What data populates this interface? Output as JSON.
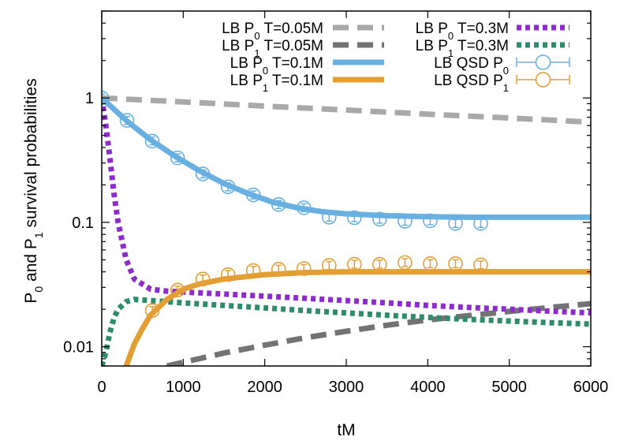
{
  "chart_data": {
    "type": "line",
    "title": "",
    "xlabel": "tM",
    "ylabel": "P0 and P1 survival probabilities",
    "ylabel_parts": {
      "a": "P",
      "sub_a": "0",
      "mid": " and P",
      "sub_b": "1",
      "rest": " survival probabilities"
    },
    "xlim": [
      0,
      6000
    ],
    "ylim": [
      0.007,
      5
    ],
    "yscale": "log",
    "xticks": [
      0,
      1000,
      2000,
      3000,
      4000,
      5000,
      6000
    ],
    "xtick_labels": [
      "0",
      "1000",
      "2000",
      "3000",
      "4000",
      "5000",
      "6000"
    ],
    "yticks": [
      0.01,
      0.1,
      1
    ],
    "ytick_labels": [
      "0.01",
      "0.1",
      "1"
    ],
    "grid": false,
    "legend_position": "top",
    "series": [
      {
        "name": "LB P0 T=0.05M",
        "legend": {
          "a": "LB P",
          "sub": "0",
          "rest": " T=0.05M"
        },
        "style": "dashed",
        "color": "#a9a9a9",
        "x": [
          0,
          1000,
          2000,
          3000,
          4000,
          5000,
          6000
        ],
        "y": [
          1.0,
          0.93,
          0.86,
          0.8,
          0.74,
          0.69,
          0.64
        ]
      },
      {
        "name": "LB P1 T=0.05M",
        "legend": {
          "a": "LB P",
          "sub": "1",
          "rest": " T=0.05M"
        },
        "style": "dashed",
        "color": "#737373",
        "x": [
          800,
          1000,
          1500,
          2000,
          2500,
          3000,
          3500,
          4000,
          4500,
          5000,
          5500,
          6000
        ],
        "y": [
          0.007,
          0.0075,
          0.0089,
          0.0103,
          0.0118,
          0.0133,
          0.0149,
          0.0164,
          0.0178,
          0.0192,
          0.0207,
          0.0222
        ]
      },
      {
        "name": "LB P0 T=0.1M",
        "legend": {
          "a": "LB P",
          "sub": "0",
          "rest": " T=0.1M"
        },
        "style": "solid",
        "color": "#67b0e1",
        "x": [
          0,
          300,
          600,
          900,
          1200,
          1500,
          1800,
          2100,
          2400,
          2700,
          3000,
          3500,
          4000,
          4500,
          5000,
          5500,
          6000
        ],
        "y": [
          1.0,
          0.66,
          0.46,
          0.34,
          0.26,
          0.205,
          0.17,
          0.145,
          0.131,
          0.122,
          0.117,
          0.113,
          0.111,
          0.11,
          0.11,
          0.11,
          0.11
        ]
      },
      {
        "name": "LB P1 T=0.1M",
        "legend": {
          "a": "LB P",
          "sub": "1",
          "rest": " T=0.1M"
        },
        "style": "solid",
        "color": "#e39f34",
        "x": [
          300,
          400,
          500,
          600,
          800,
          1000,
          1200,
          1500,
          2000,
          2500,
          3000,
          4000,
          5000,
          6000
        ],
        "y": [
          0.007,
          0.0105,
          0.014,
          0.018,
          0.024,
          0.029,
          0.032,
          0.035,
          0.038,
          0.0395,
          0.04,
          0.04,
          0.04,
          0.04
        ]
      },
      {
        "name": "LB P0 T=0.3M",
        "legend": {
          "a": "LB P",
          "sub": "0",
          "rest": " T=0.3M"
        },
        "style": "dotted",
        "color": "#8e2bcf",
        "x": [
          0,
          50,
          100,
          150,
          200,
          300,
          400,
          600,
          800,
          1000,
          1500,
          2000,
          2500,
          3000,
          3500,
          4000,
          4500,
          5000,
          5500,
          6000
        ],
        "y": [
          1.0,
          0.6,
          0.33,
          0.17,
          0.1,
          0.05,
          0.035,
          0.029,
          0.028,
          0.0275,
          0.0265,
          0.0255,
          0.0245,
          0.0235,
          0.0225,
          0.0215,
          0.0207,
          0.02,
          0.0193,
          0.0187
        ]
      },
      {
        "name": "LB P1 T=0.3M",
        "legend": {
          "a": "LB P",
          "sub": "1",
          "rest": " T=0.3M"
        },
        "style": "dotted",
        "color": "#2e8b6e",
        "x": [
          0,
          50,
          100,
          150,
          200,
          300,
          400,
          600,
          800,
          1000,
          1500,
          2000,
          2500,
          3000,
          3500,
          4000,
          4500,
          5000,
          5500,
          6000
        ],
        "y": [
          0.007,
          0.009,
          0.013,
          0.017,
          0.02,
          0.023,
          0.024,
          0.0235,
          0.023,
          0.0225,
          0.0215,
          0.0205,
          0.0195,
          0.0187,
          0.0179,
          0.0172,
          0.0166,
          0.0161,
          0.0156,
          0.0152
        ]
      },
      {
        "name": "LB QSD P0",
        "legend": {
          "a": "LB QSD P",
          "sub": "0",
          "rest": ""
        },
        "style": "markers",
        "color": "#67b0e1",
        "x": [
          0,
          310,
          620,
          930,
          1240,
          1550,
          1860,
          2170,
          2480,
          2790,
          3100,
          3410,
          3720,
          4030,
          4340,
          4650
        ],
        "y": [
          1.0,
          0.66,
          0.45,
          0.33,
          0.245,
          0.193,
          0.166,
          0.139,
          0.131,
          0.11,
          0.109,
          0.106,
          0.102,
          0.103,
          0.098,
          0.098
        ]
      },
      {
        "name": "LB QSD P1",
        "legend": {
          "a": "LB QSD P",
          "sub": "1",
          "rest": ""
        },
        "style": "markers",
        "color": "#e39f34",
        "x": [
          620,
          930,
          1240,
          1550,
          1860,
          2170,
          2480,
          2790,
          3100,
          3410,
          3720,
          4030,
          4340,
          4650
        ],
        "y": [
          0.0195,
          0.0285,
          0.035,
          0.038,
          0.041,
          0.042,
          0.0425,
          0.045,
          0.046,
          0.046,
          0.0475,
          0.0465,
          0.0465,
          0.0455
        ]
      }
    ]
  }
}
